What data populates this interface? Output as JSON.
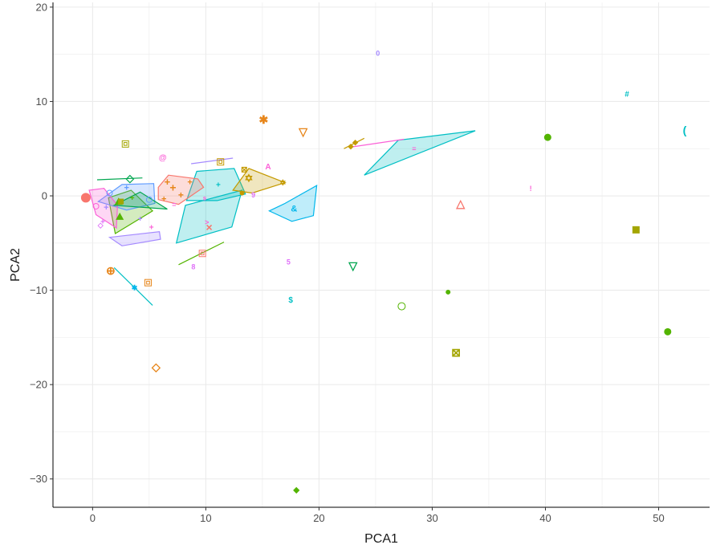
{
  "chart_data": {
    "type": "scatter",
    "title": "",
    "xlabel": "PCA1",
    "ylabel": "PCA2",
    "xlim": [
      -3.5,
      54.5
    ],
    "ylim": [
      -33,
      20.5
    ],
    "x_ticks": [
      0,
      10,
      20,
      30,
      40,
      50
    ],
    "y_ticks": [
      -30,
      -20,
      -10,
      0,
      10,
      20
    ],
    "grid": true,
    "legend": "none",
    "colors": {
      "red": "#F8766D",
      "orange": "#E7861B",
      "gold": "#C49A00",
      "olive": "#A3A500",
      "green": "#53B400",
      "darkgreen": "#00A64F",
      "cyan": "#00BFC4",
      "teal": "#00B6EB",
      "blue": "#619CFF",
      "purple": "#A58AFF",
      "violet": "#DF70F8",
      "pink": "#FB61D7"
    },
    "hulls": [
      {
        "color": "#00BFC4",
        "alpha": 0.25,
        "points": [
          [
            24.0,
            2.2
          ],
          [
            33.8,
            6.9
          ],
          [
            27.0,
            5.9
          ]
        ]
      },
      {
        "color": "#00BFC4",
        "alpha": 0.25,
        "points": [
          [
            7.4,
            -5.0
          ],
          [
            8.2,
            -1.0
          ],
          [
            13.2,
            0.6
          ],
          [
            12.3,
            -3.3
          ]
        ]
      },
      {
        "color": "#00BFC4",
        "alpha": 0.25,
        "points": [
          [
            8.3,
            -0.5
          ],
          [
            9.2,
            2.6
          ],
          [
            12.5,
            2.9
          ],
          [
            13.5,
            0.2
          ],
          [
            11.0,
            -0.5
          ]
        ]
      },
      {
        "color": "#00B6EB",
        "alpha": 0.25,
        "points": [
          [
            15.6,
            -1.6
          ],
          [
            17.0,
            -0.8
          ],
          [
            19.8,
            1.1
          ],
          [
            19.5,
            -2.1
          ],
          [
            17.6,
            -2.7
          ]
        ]
      },
      {
        "color": "#C49A00",
        "alpha": 0.25,
        "points": [
          [
            12.4,
            0.6
          ],
          [
            13.8,
            2.9
          ],
          [
            17.0,
            1.4
          ],
          [
            14.1,
            0.3
          ]
        ]
      },
      {
        "color": "#F8766D",
        "alpha": 0.25,
        "points": [
          [
            5.8,
            0.9
          ],
          [
            6.7,
            2.2
          ],
          [
            9.3,
            1.8
          ],
          [
            9.8,
            0.9
          ],
          [
            7.6,
            -0.9
          ],
          [
            5.8,
            -0.4
          ]
        ]
      },
      {
        "color": "#53B400",
        "alpha": 0.25,
        "points": [
          [
            2.0,
            -4.0
          ],
          [
            5.3,
            -1.6
          ],
          [
            3.4,
            0.6
          ],
          [
            1.4,
            -0.2
          ]
        ]
      },
      {
        "color": "#619CFF",
        "alpha": 0.25,
        "points": [
          [
            0.5,
            -0.6
          ],
          [
            2.6,
            1.2
          ],
          [
            5.4,
            1.3
          ],
          [
            5.5,
            -0.8
          ],
          [
            3.0,
            -1.5
          ]
        ]
      },
      {
        "color": "#A58AFF",
        "alpha": 0.25,
        "points": [
          [
            1.5,
            -4.4
          ],
          [
            5.9,
            -3.8
          ],
          [
            6.0,
            -4.6
          ],
          [
            2.6,
            -5.3
          ]
        ]
      },
      {
        "color": "#FB61D7",
        "alpha": 0.25,
        "points": [
          [
            -0.3,
            0.6
          ],
          [
            0.3,
            -2.0
          ],
          [
            2.1,
            -3.4
          ],
          [
            2.2,
            -1.0
          ],
          [
            1.0,
            0.8
          ]
        ]
      },
      {
        "color": "#00A64F",
        "alpha": 0.25,
        "points": [
          [
            1.9,
            -1.0
          ],
          [
            6.6,
            -1.4
          ],
          [
            4.2,
            0.4
          ]
        ]
      }
    ],
    "segments": [
      {
        "color": "#00BFC4",
        "points": [
          [
            1.9,
            -7.6
          ],
          [
            5.3,
            -11.6
          ]
        ]
      },
      {
        "color": "#53B400",
        "points": [
          [
            7.6,
            -7.3
          ],
          [
            11.6,
            -4.9
          ]
        ]
      },
      {
        "color": "#FB61D7",
        "points": [
          [
            23.0,
            5.2
          ],
          [
            27.5,
            6.0
          ]
        ]
      },
      {
        "color": "#A58AFF",
        "points": [
          [
            8.7,
            3.4
          ],
          [
            12.4,
            4.0
          ]
        ]
      },
      {
        "color": "#00A64F",
        "points": [
          [
            0.4,
            1.7
          ],
          [
            4.4,
            1.9
          ]
        ]
      },
      {
        "color": "#C49A00",
        "points": [
          [
            22.2,
            5.0
          ],
          [
            24.0,
            6.1
          ]
        ]
      }
    ],
    "points": [
      {
        "x": 25.2,
        "y": 15.1,
        "label": "0",
        "color": "#A58AFF",
        "kind": "text",
        "size": 9
      },
      {
        "x": 47.2,
        "y": 10.8,
        "label": "#",
        "color": "#00BFC4",
        "kind": "text",
        "size": 10
      },
      {
        "x": 52.3,
        "y": 7.0,
        "label": "(",
        "color": "#00BFC4",
        "kind": "text",
        "size": 14
      },
      {
        "x": 40.2,
        "y": 6.2,
        "color": "#53B400",
        "kind": "circle",
        "size": 4.5
      },
      {
        "x": 15.1,
        "y": 8.1,
        "label": "✱",
        "color": "#E7861B",
        "kind": "text",
        "size": 14
      },
      {
        "x": 18.6,
        "y": 6.8,
        "label": "▽",
        "color": "#E7861B",
        "kind": "text",
        "size": 14
      },
      {
        "x": 2.9,
        "y": 5.5,
        "color": "#A3A500",
        "kind": "square-open",
        "size": 4
      },
      {
        "x": 6.2,
        "y": 4.1,
        "label": "@",
        "color": "#FB61D7",
        "kind": "text",
        "size": 10
      },
      {
        "x": 11.3,
        "y": 3.6,
        "color": "#C49A00",
        "kind": "square-open",
        "size": 4
      },
      {
        "x": 15.5,
        "y": 3.1,
        "label": "A",
        "color": "#FB61D7",
        "kind": "text",
        "size": 10
      },
      {
        "x": 28.4,
        "y": 5.0,
        "label": "=",
        "color": "#FB61D7",
        "kind": "text",
        "size": 9
      },
      {
        "x": 38.7,
        "y": 0.8,
        "label": "!",
        "color": "#FB61D7",
        "kind": "text",
        "size": 9
      },
      {
        "x": 32.5,
        "y": -0.8,
        "label": "△",
        "color": "#F8766D",
        "kind": "text",
        "size": 14
      },
      {
        "x": 48.0,
        "y": -3.6,
        "color": "#A3A500",
        "kind": "square",
        "size": 4.5
      },
      {
        "x": 10.3,
        "y": -3.3,
        "label": "×",
        "color": "#F8766D",
        "kind": "text",
        "size": 14
      },
      {
        "x": 9.7,
        "y": -6.1,
        "color": "#F8766D",
        "kind": "square-open",
        "size": 4
      },
      {
        "x": 8.9,
        "y": -7.5,
        "label": "8",
        "color": "#DF70F8",
        "kind": "text",
        "size": 9
      },
      {
        "x": 17.3,
        "y": -7.0,
        "label": "5",
        "color": "#DF70F8",
        "kind": "text",
        "size": 9
      },
      {
        "x": 23.0,
        "y": -7.4,
        "label": "▽",
        "color": "#00A64F",
        "kind": "text",
        "size": 14
      },
      {
        "x": 17.5,
        "y": -11.0,
        "label": "$",
        "color": "#00BFC4",
        "kind": "text",
        "size": 10
      },
      {
        "x": 27.3,
        "y": -11.7,
        "color": "#53B400",
        "kind": "circle-open",
        "size": 4.5
      },
      {
        "x": 31.4,
        "y": -10.2,
        "color": "#53B400",
        "kind": "circle",
        "size": 3
      },
      {
        "x": 32.1,
        "y": -16.6,
        "label": "⊠",
        "color": "#A3A500",
        "kind": "text",
        "size": 14
      },
      {
        "x": 50.8,
        "y": -14.4,
        "color": "#53B400",
        "kind": "circle",
        "size": 4.5
      },
      {
        "x": 1.6,
        "y": -7.9,
        "label": "⊕",
        "color": "#E7861B",
        "kind": "text",
        "size": 14
      },
      {
        "x": 4.9,
        "y": -9.2,
        "color": "#E7861B",
        "kind": "square-open",
        "size": 4
      },
      {
        "x": 3.7,
        "y": -9.7,
        "label": "✱",
        "color": "#00B6EB",
        "kind": "text",
        "size": 9
      },
      {
        "x": 5.6,
        "y": -18.1,
        "label": "◇",
        "color": "#E7861B",
        "kind": "text",
        "size": 14
      },
      {
        "x": 18.0,
        "y": -31.1,
        "label": "◆",
        "color": "#53B400",
        "kind": "text",
        "size": 10
      },
      {
        "x": 17.8,
        "y": -1.3,
        "label": "&",
        "color": "#00B6EB",
        "kind": "text",
        "size": 11
      },
      {
        "x": 13.8,
        "y": 1.9,
        "label": "✡",
        "color": "#C49A00",
        "kind": "text",
        "size": 13
      },
      {
        "x": 13.2,
        "y": 0.3,
        "color": "#C49A00",
        "kind": "circle",
        "size": 3
      },
      {
        "x": 13.4,
        "y": 2.8,
        "label": "⊠",
        "color": "#C49A00",
        "kind": "text",
        "size": 10
      },
      {
        "x": 16.8,
        "y": 1.4,
        "label": "✡",
        "color": "#C49A00",
        "kind": "text",
        "size": 10
      },
      {
        "x": 14.2,
        "y": 0.1,
        "label": "9",
        "color": "#DF70F8",
        "kind": "text",
        "size": 9
      },
      {
        "x": 23.2,
        "y": 5.7,
        "label": "◆",
        "color": "#C49A00",
        "kind": "text",
        "size": 9
      },
      {
        "x": 22.8,
        "y": 5.3,
        "label": "◆",
        "color": "#C49A00",
        "kind": "text",
        "size": 9
      },
      {
        "x": 3.3,
        "y": 1.9,
        "label": "◇",
        "color": "#00A64F",
        "kind": "text",
        "size": 13
      },
      {
        "x": -0.6,
        "y": -0.2,
        "color": "#F8766D",
        "kind": "circle",
        "size": 6
      },
      {
        "x": 2.3,
        "y": -0.6,
        "color": "#53B400",
        "kind": "triangle",
        "size": 5
      },
      {
        "x": 2.4,
        "y": -2.2,
        "color": "#53B400",
        "kind": "triangle",
        "size": 5
      },
      {
        "x": 7.1,
        "y": 0.9,
        "label": "+",
        "color": "#E7861B",
        "kind": "text",
        "size": 14
      },
      {
        "x": 6.6,
        "y": 1.5,
        "label": "+",
        "color": "#E7861B",
        "kind": "text",
        "size": 13
      },
      {
        "x": 7.8,
        "y": 0.1,
        "label": "+",
        "color": "#E7861B",
        "kind": "text",
        "size": 12
      },
      {
        "x": 6.3,
        "y": -0.3,
        "label": "+",
        "color": "#E7861B",
        "kind": "text",
        "size": 11
      },
      {
        "x": 8.6,
        "y": 1.5,
        "label": "+",
        "color": "#E7861B",
        "kind": "text",
        "size": 11
      },
      {
        "x": 7.2,
        "y": -0.9,
        "label": "=",
        "color": "#FB61D7",
        "kind": "text",
        "size": 9
      },
      {
        "x": 10.1,
        "y": -2.8,
        "label": ">",
        "color": "#FB61D7",
        "kind": "text",
        "size": 9
      },
      {
        "x": 9.9,
        "y": -0.2,
        "label": "s",
        "color": "#FB61D7",
        "kind": "text",
        "size": 8
      },
      {
        "x": 11.1,
        "y": 1.2,
        "label": "+",
        "color": "#00BFC4",
        "kind": "text",
        "size": 10
      },
      {
        "x": 3.0,
        "y": 0.9,
        "label": "+",
        "color": "#619CFF",
        "kind": "text",
        "size": 11
      },
      {
        "x": 1.2,
        "y": -1.2,
        "label": "+",
        "color": "#A58AFF",
        "kind": "text",
        "size": 11
      },
      {
        "x": 4.2,
        "y": -2.4,
        "label": "+",
        "color": "#A58AFF",
        "kind": "text",
        "size": 10
      },
      {
        "x": 5.2,
        "y": -3.3,
        "label": "+",
        "color": "#FB61D7",
        "kind": "text",
        "size": 10
      },
      {
        "x": 0.9,
        "y": -2.7,
        "label": "+",
        "color": "#DF70F8",
        "kind": "text",
        "size": 10
      },
      {
        "x": 3.5,
        "y": -0.2,
        "label": "+",
        "color": "#53B400",
        "kind": "text",
        "size": 10
      },
      {
        "x": 2.5,
        "y": -0.6,
        "color": "#A3A500",
        "kind": "square",
        "size": 3.5
      },
      {
        "x": 5.0,
        "y": -0.4,
        "color": "#619CFF",
        "kind": "circle-open",
        "size": 3.5
      },
      {
        "x": 1.5,
        "y": 0.3,
        "color": "#619CFF",
        "kind": "circle-open",
        "size": 3.5
      },
      {
        "x": 0.3,
        "y": -1.1,
        "color": "#FB61D7",
        "kind": "circle-open",
        "size": 3.5
      },
      {
        "x": 0.7,
        "y": -3.1,
        "label": "◇",
        "color": "#DF70F8",
        "kind": "text",
        "size": 9
      }
    ]
  }
}
